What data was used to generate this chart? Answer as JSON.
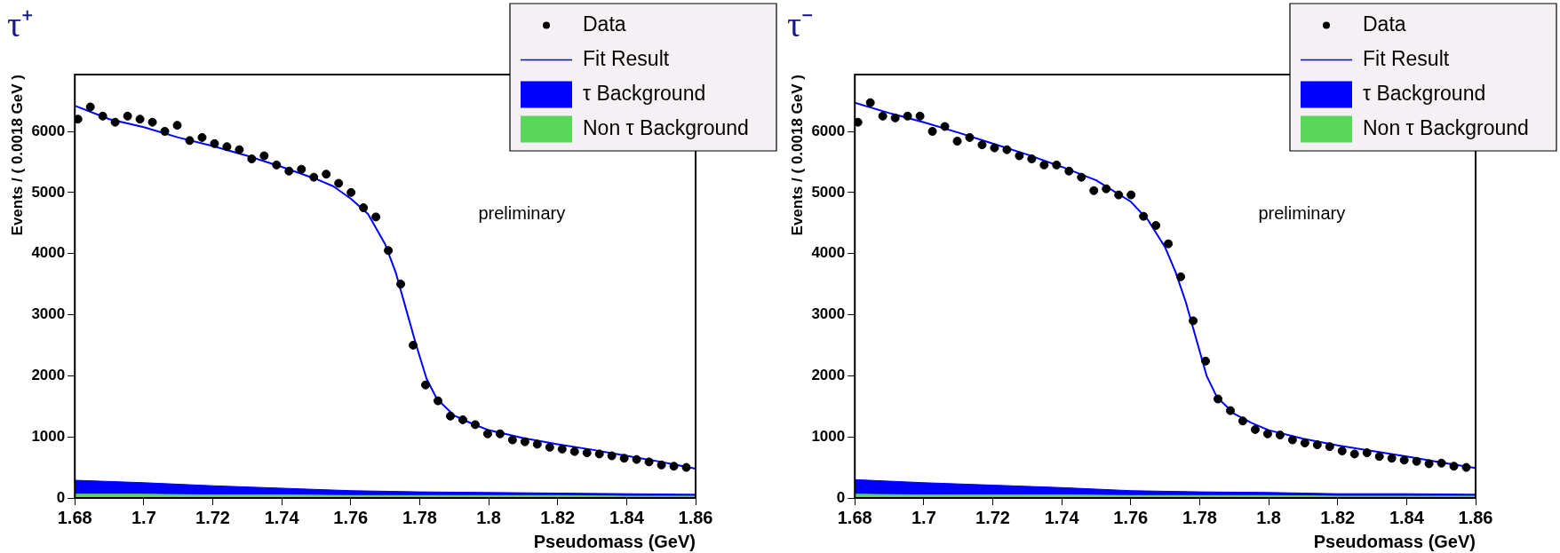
{
  "chart_data": [
    {
      "type": "scatter",
      "title": "τ⁺",
      "xlabel": "Pseudomass (GeV)",
      "ylabel": "Events / ( 0.0018 GeV )",
      "annotations": [
        "preliminary"
      ],
      "xlim": [
        1.68,
        1.86
      ],
      "ylim": [
        0,
        6930
      ],
      "xticks": [
        1.68,
        1.7,
        1.72,
        1.74,
        1.76,
        1.78,
        1.8,
        1.82,
        1.84,
        1.86
      ],
      "yticks": [
        0,
        1000,
        2000,
        3000,
        4000,
        5000,
        6000
      ],
      "grid": false,
      "legend": "top right",
      "stacked": true,
      "series": [
        {
          "name": "Data",
          "color": "#000000",
          "marker": "circle",
          "x": [
            1.6809,
            1.6845,
            1.6881,
            1.6917,
            1.6953,
            1.6989,
            1.7025,
            1.7061,
            1.7097,
            1.7133,
            1.7169,
            1.7205,
            1.7241,
            1.7277,
            1.7313,
            1.7349,
            1.7385,
            1.7421,
            1.7457,
            1.7493,
            1.7529,
            1.7565,
            1.7601,
            1.7637,
            1.7673,
            1.7709,
            1.7745,
            1.7781,
            1.7817,
            1.7853,
            1.7889,
            1.7925,
            1.7961,
            1.7997,
            1.8033,
            1.8069,
            1.8105,
            1.8141,
            1.8177,
            1.8213,
            1.8249,
            1.8285,
            1.8321,
            1.8357,
            1.8393,
            1.8429,
            1.8465,
            1.8501,
            1.8537,
            1.8573
          ],
          "values": [
            6200,
            6400,
            6250,
            6150,
            6250,
            6200,
            6150,
            6000,
            6100,
            5850,
            5900,
            5800,
            5750,
            5700,
            5550,
            5600,
            5450,
            5350,
            5380,
            5250,
            5300,
            5150,
            5000,
            4750,
            4600,
            4050,
            3500,
            2500,
            1850,
            1590,
            1340,
            1280,
            1200,
            1050,
            1050,
            950,
            920,
            880,
            830,
            800,
            760,
            740,
            720,
            690,
            650,
            630,
            590,
            540,
            520,
            500
          ]
        },
        {
          "name": "Fit Result",
          "type": "line",
          "color": "#0000ff",
          "x": [
            1.68,
            1.69,
            1.7,
            1.71,
            1.72,
            1.73,
            1.74,
            1.75,
            1.755,
            1.76,
            1.765,
            1.77,
            1.773,
            1.776,
            1.779,
            1.782,
            1.785,
            1.79,
            1.795,
            1.8,
            1.81,
            1.82,
            1.83,
            1.84,
            1.85,
            1.86
          ],
          "values": [
            6420,
            6200,
            6070,
            5900,
            5760,
            5600,
            5420,
            5220,
            5100,
            4900,
            4650,
            4150,
            3700,
            3100,
            2500,
            1950,
            1620,
            1350,
            1220,
            1110,
            980,
            880,
            790,
            690,
            590,
            480
          ]
        },
        {
          "name": "Non τ Background",
          "type": "area",
          "color": "#5ad65a",
          "x": [
            1.68,
            1.7,
            1.72,
            1.74,
            1.76,
            1.78,
            1.8,
            1.82,
            1.84,
            1.86
          ],
          "values": [
            60,
            60,
            50,
            50,
            40,
            40,
            40,
            40,
            30,
            30
          ]
        },
        {
          "name": "τ Background",
          "type": "area",
          "color": "#0000ff",
          "x": [
            1.68,
            1.7,
            1.72,
            1.74,
            1.76,
            1.78,
            1.8,
            1.82,
            1.84,
            1.86
          ],
          "values": [
            230,
            190,
            150,
            110,
            80,
            60,
            50,
            40,
            40,
            30
          ]
        }
      ]
    },
    {
      "type": "scatter",
      "title": "τ⁻",
      "xlabel": "Pseudomass (GeV)",
      "ylabel": "Events / ( 0.0018 GeV )",
      "annotations": [
        "preliminary"
      ],
      "xlim": [
        1.68,
        1.86
      ],
      "ylim": [
        0,
        6930
      ],
      "xticks": [
        1.68,
        1.7,
        1.72,
        1.74,
        1.76,
        1.78,
        1.8,
        1.82,
        1.84,
        1.86
      ],
      "yticks": [
        0,
        1000,
        2000,
        3000,
        4000,
        5000,
        6000
      ],
      "grid": false,
      "legend": "top right",
      "stacked": true,
      "series": [
        {
          "name": "Data",
          "color": "#000000",
          "marker": "circle",
          "x": [
            1.6809,
            1.6845,
            1.6881,
            1.6917,
            1.6953,
            1.6989,
            1.7025,
            1.7061,
            1.7097,
            1.7133,
            1.7169,
            1.7205,
            1.7241,
            1.7277,
            1.7313,
            1.7349,
            1.7385,
            1.7421,
            1.7457,
            1.7493,
            1.7529,
            1.7565,
            1.7601,
            1.7637,
            1.7673,
            1.7709,
            1.7745,
            1.7781,
            1.7817,
            1.7853,
            1.7889,
            1.7925,
            1.7961,
            1.7997,
            1.8033,
            1.8069,
            1.8105,
            1.8141,
            1.8177,
            1.8213,
            1.8249,
            1.8285,
            1.8321,
            1.8357,
            1.8393,
            1.8429,
            1.8465,
            1.8501,
            1.8537,
            1.8573
          ],
          "values": [
            6150,
            6470,
            6250,
            6220,
            6250,
            6250,
            6000,
            6080,
            5840,
            5900,
            5780,
            5730,
            5700,
            5600,
            5550,
            5450,
            5450,
            5350,
            5250,
            5030,
            5060,
            4960,
            4960,
            4610,
            4460,
            4160,
            3620,
            2900,
            2240,
            1620,
            1430,
            1260,
            1120,
            1050,
            1030,
            950,
            900,
            870,
            840,
            770,
            720,
            740,
            680,
            650,
            620,
            600,
            560,
            570,
            520,
            500
          ]
        },
        {
          "name": "Fit Result",
          "type": "line",
          "color": "#0000ff",
          "x": [
            1.68,
            1.69,
            1.7,
            1.71,
            1.72,
            1.73,
            1.74,
            1.75,
            1.76,
            1.765,
            1.77,
            1.773,
            1.776,
            1.779,
            1.782,
            1.785,
            1.79,
            1.795,
            1.8,
            1.81,
            1.82,
            1.83,
            1.84,
            1.85,
            1.86
          ],
          "values": [
            6470,
            6300,
            6150,
            5980,
            5800,
            5620,
            5420,
            5200,
            4850,
            4550,
            4100,
            3700,
            3200,
            2600,
            2000,
            1650,
            1380,
            1230,
            1110,
            970,
            860,
            770,
            680,
            580,
            490
          ]
        },
        {
          "name": "Non τ Background",
          "type": "area",
          "color": "#5ad65a",
          "x": [
            1.68,
            1.7,
            1.72,
            1.74,
            1.76,
            1.78,
            1.8,
            1.82,
            1.84,
            1.86
          ],
          "values": [
            60,
            50,
            50,
            50,
            40,
            40,
            40,
            30,
            30,
            30
          ]
        },
        {
          "name": "τ Background",
          "type": "area",
          "color": "#0000ff",
          "x": [
            1.68,
            1.7,
            1.72,
            1.74,
            1.76,
            1.78,
            1.8,
            1.82,
            1.84,
            1.86
          ],
          "values": [
            240,
            200,
            160,
            120,
            80,
            60,
            50,
            40,
            40,
            30
          ]
        }
      ]
    }
  ]
}
